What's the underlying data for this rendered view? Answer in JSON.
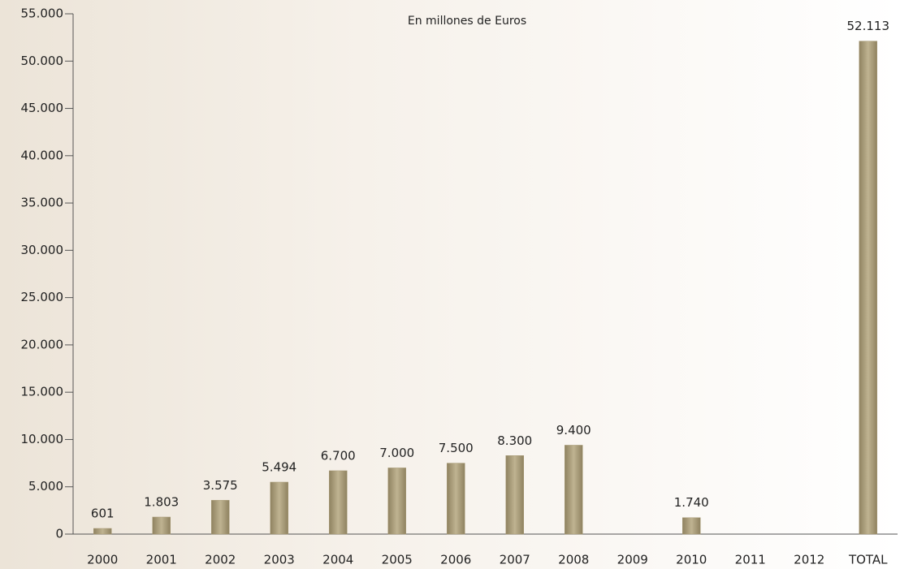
{
  "chart_data": {
    "type": "bar",
    "subtitle": "En millones de Euros",
    "categories": [
      "2000",
      "2001",
      "2002",
      "2003",
      "2004",
      "2005",
      "2006",
      "2007",
      "2008",
      "2009",
      "2010",
      "2011",
      "2012",
      "TOTAL"
    ],
    "values": [
      601,
      1803,
      3575,
      5494,
      6700,
      7000,
      7500,
      8300,
      9400,
      null,
      1740,
      null,
      null,
      52113
    ],
    "value_labels": [
      "601",
      "1.803",
      "3.575",
      "5.494",
      "6.700",
      "7.000",
      "7.500",
      "8.300",
      "9.400",
      null,
      "1.740",
      null,
      null,
      "52.113"
    ],
    "color": "#a99c78",
    "ylim": [
      0,
      55000
    ],
    "yticks": [
      0,
      {
        "value": 5000,
        "label": "5.000"
      },
      {
        "value": 10000,
        "label": "10.000"
      },
      {
        "value": 15000,
        "label": "15.000"
      },
      {
        "value": 20000,
        "label": "20.000"
      },
      {
        "value": 25000,
        "label": "25.000"
      },
      {
        "value": 30000,
        "label": "30.000"
      },
      {
        "value": 35000,
        "label": "35.000"
      },
      {
        "value": 40000,
        "label": "40.000"
      },
      {
        "value": 45000,
        "label": "45.000"
      },
      {
        "value": 50000,
        "label": "50.000"
      },
      {
        "value": 55000,
        "label": "55.000"
      }
    ]
  }
}
